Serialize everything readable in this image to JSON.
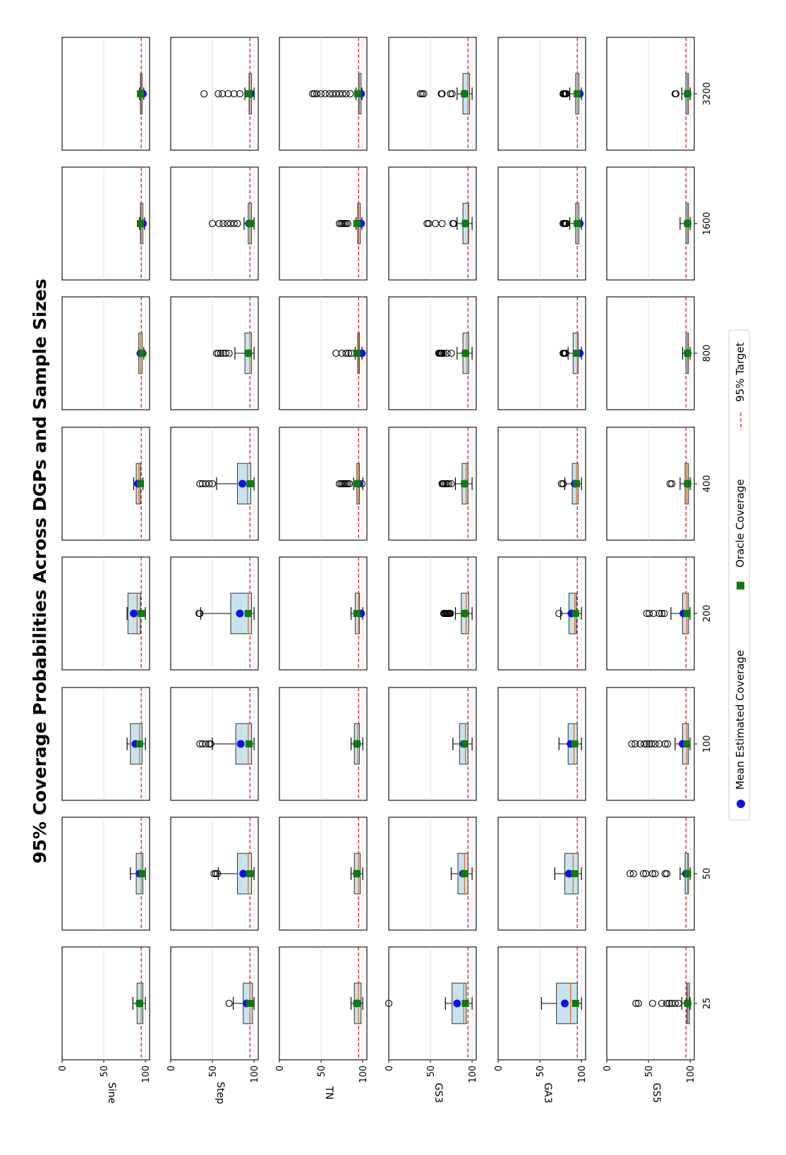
{
  "chart_data": {
    "type": "boxplot-grid",
    "title": "95% Coverage Probabilities Across DGPs and Sample Sizes",
    "rows": [
      "Sine",
      "Step",
      "TN",
      "GS3",
      "GA3",
      "GS5"
    ],
    "columns": [
      "25",
      "50",
      "100",
      "200",
      "400",
      "800",
      "1600",
      "3200"
    ],
    "ylim": [
      0,
      105
    ],
    "yticks": [
      0,
      50,
      100
    ],
    "target": 95,
    "legend": {
      "mean": "Mean Estimated Coverage",
      "oracle": "Oracle Coverage",
      "target": "95% Target"
    },
    "colors": {
      "box_fill": "#c7e3ee",
      "median": "#e66c1e",
      "mean": "#1010ee",
      "oracle": "#0f7a0f",
      "target": "#e41a1c"
    },
    "panels": [
      [
        {
          "q1": 90,
          "median": 95,
          "q3": 97,
          "wlo": 85,
          "whi": 100,
          "mean": 93,
          "oracle": 93,
          "outliers": []
        },
        {
          "q1": 89,
          "median": 95,
          "q3": 97,
          "wlo": 82,
          "whi": 100,
          "mean": 93,
          "oracle": 96,
          "outliers": []
        },
        {
          "q1": 82,
          "median": 93,
          "q3": 96,
          "wlo": 78,
          "whi": 100,
          "mean": 88,
          "oracle": 93,
          "outliers": []
        },
        {
          "q1": 79,
          "median": 90,
          "q3": 94,
          "wlo": 78,
          "whi": 100,
          "mean": 86,
          "oracle": 95,
          "outliers": []
        },
        {
          "q1": 89,
          "median": 92,
          "q3": 94,
          "wlo": 86,
          "whi": 97,
          "mean": 91,
          "oracle": 94,
          "outliers": []
        },
        {
          "q1": 92,
          "median": 94,
          "q3": 96,
          "wlo": 92,
          "whi": 98,
          "mean": 94,
          "oracle": 96,
          "outliers": [
            97
          ]
        },
        {
          "q1": 94,
          "median": 95,
          "q3": 97,
          "wlo": 93,
          "whi": 99,
          "mean": 97,
          "oracle": 94,
          "outliers": []
        },
        {
          "q1": 94,
          "median": 95,
          "q3": 96,
          "wlo": 93,
          "whi": 98,
          "mean": 97,
          "oracle": 94,
          "outliers": []
        }
      ],
      [
        {
          "q1": 87,
          "median": 95,
          "q3": 98,
          "wlo": 75,
          "whi": 100,
          "mean": 91,
          "oracle": 95,
          "outliers": [
            70
          ]
        },
        {
          "q1": 80,
          "median": 93,
          "q3": 97,
          "wlo": 57,
          "whi": 100,
          "mean": 87,
          "oracle": 95,
          "outliers": [
            52,
            54,
            56
          ]
        },
        {
          "q1": 78,
          "median": 93,
          "q3": 97,
          "wlo": 50,
          "whi": 100,
          "mean": 84,
          "oracle": 94,
          "outliers": [
            35,
            38,
            42,
            46,
            48
          ]
        },
        {
          "q1": 72,
          "median": 93,
          "q3": 97,
          "wlo": 36,
          "whi": 100,
          "mean": 83,
          "oracle": 93,
          "outliers": [
            34,
            35
          ]
        },
        {
          "q1": 80,
          "median": 92,
          "q3": 96,
          "wlo": 55,
          "whi": 100,
          "mean": 86,
          "oracle": 95,
          "outliers": [
            35,
            38,
            42,
            46,
            50
          ]
        },
        {
          "q1": 89,
          "median": 95,
          "q3": 97,
          "wlo": 77,
          "whi": 100,
          "mean": 93,
          "oracle": 93,
          "outliers": [
            55,
            57,
            60,
            63,
            66,
            70
          ]
        },
        {
          "q1": 93,
          "median": 95,
          "q3": 97,
          "wlo": 88,
          "whi": 100,
          "mean": 94,
          "oracle": 95,
          "outliers": [
            50,
            58,
            63,
            68,
            72,
            76,
            80
          ]
        },
        {
          "q1": 94,
          "median": 95,
          "q3": 97,
          "wlo": 89,
          "whi": 100,
          "mean": 96,
          "oracle": 94,
          "outliers": [
            40,
            57,
            62,
            69,
            76,
            83
          ]
        }
      ],
      [
        {
          "q1": 90,
          "median": 95,
          "q3": 98,
          "wlo": 86,
          "whi": 100,
          "mean": 93,
          "oracle": 93,
          "outliers": []
        },
        {
          "q1": 90,
          "median": 95,
          "q3": 97,
          "wlo": 86,
          "whi": 100,
          "mean": 93,
          "oracle": 93,
          "outliers": []
        },
        {
          "q1": 90,
          "median": 94,
          "q3": 96,
          "wlo": 86,
          "whi": 100,
          "mean": 93,
          "oracle": 93,
          "outliers": []
        },
        {
          "q1": 91,
          "median": 95,
          "q3": 96,
          "wlo": 86,
          "whi": 100,
          "mean": 98,
          "oracle": 93,
          "outliers": []
        },
        {
          "q1": 93,
          "median": 95,
          "q3": 96,
          "wlo": 89,
          "whi": 100,
          "mean": 95,
          "oracle": 93,
          "outliers": [
            72,
            74,
            76,
            78,
            80,
            82,
            84,
            99
          ]
        },
        {
          "q1": 94,
          "median": 95,
          "q3": 96,
          "wlo": 91,
          "whi": 99,
          "mean": 99,
          "oracle": 93,
          "outliers": [
            68,
            75,
            80,
            83,
            86
          ]
        },
        {
          "q1": 94,
          "median": 95,
          "q3": 97,
          "wlo": 92,
          "whi": 99,
          "mean": 98,
          "oracle": 93,
          "outliers": [
            72,
            74,
            76,
            78,
            80,
            82
          ]
        },
        {
          "q1": 95,
          "median": 96,
          "q3": 98,
          "wlo": 92,
          "whi": 99,
          "mean": 98,
          "oracle": 94,
          "outliers": [
            40,
            42,
            45,
            50,
            55,
            60,
            64,
            68,
            72,
            76,
            80,
            85
          ]
        }
      ],
      [
        {
          "q1": 76,
          "median": 90,
          "q3": 93,
          "wlo": 68,
          "whi": 100,
          "mean": 82,
          "oracle": 92,
          "outliers": [
            0
          ]
        },
        {
          "q1": 83,
          "median": 91,
          "q3": 95,
          "wlo": 75,
          "whi": 100,
          "mean": 89,
          "oracle": 91,
          "outliers": []
        },
        {
          "q1": 85,
          "median": 92,
          "q3": 95,
          "wlo": 77,
          "whi": 100,
          "mean": 90,
          "oracle": 91,
          "outliers": []
        },
        {
          "q1": 87,
          "median": 93,
          "q3": 96,
          "wlo": 80,
          "whi": 100,
          "mean": 91,
          "oracle": 91,
          "outliers": [
            66,
            67,
            68,
            69,
            70,
            71,
            72,
            73,
            74
          ]
        },
        {
          "q1": 88,
          "median": 93,
          "q3": 95,
          "wlo": 80,
          "whi": 100,
          "mean": 91,
          "oracle": 91,
          "outliers": [
            64,
            65,
            66,
            68,
            70,
            72,
            75
          ]
        },
        {
          "q1": 89,
          "median": 94,
          "q3": 96,
          "wlo": 82,
          "whi": 100,
          "mean": 92,
          "oracle": 92,
          "outliers": [
            60,
            61,
            62,
            63,
            64,
            66,
            70,
            75
          ]
        },
        {
          "q1": 89,
          "median": 95,
          "q3": 96,
          "wlo": 82,
          "whi": 100,
          "mean": 92,
          "oracle": 92,
          "outliers": [
            46,
            48,
            56,
            64,
            77,
            78
          ]
        },
        {
          "q1": 89,
          "median": 95,
          "q3": 97,
          "wlo": 82,
          "whi": 100,
          "mean": 91,
          "oracle": 91,
          "outliers": [
            38,
            40,
            42,
            63,
            64,
            74,
            76
          ]
        }
      ],
      [
        {
          "q1": 70,
          "median": 87,
          "q3": 95,
          "wlo": 52,
          "whi": 100,
          "mean": 80,
          "oracle": 93,
          "outliers": []
        },
        {
          "q1": 80,
          "median": 90,
          "q3": 96,
          "wlo": 68,
          "whi": 100,
          "mean": 85,
          "oracle": 92,
          "outliers": []
        },
        {
          "q1": 84,
          "median": 91,
          "q3": 95,
          "wlo": 73,
          "whi": 100,
          "mean": 87,
          "oracle": 92,
          "outliers": []
        },
        {
          "q1": 85,
          "median": 92,
          "q3": 94,
          "wlo": 75,
          "whi": 100,
          "mean": 88,
          "oracle": 93,
          "outliers": [
            73
          ]
        },
        {
          "q1": 89,
          "median": 94,
          "q3": 96,
          "wlo": 80,
          "whi": 100,
          "mean": 92,
          "oracle": 94,
          "outliers": [
            76,
            78
          ]
        },
        {
          "q1": 90,
          "median": 95,
          "q3": 96,
          "wlo": 84,
          "whi": 100,
          "mean": 98,
          "oracle": 94,
          "outliers": [
            78,
            79,
            80,
            81
          ]
        },
        {
          "q1": 93,
          "median": 95,
          "q3": 97,
          "wlo": 86,
          "whi": 100,
          "mean": 98,
          "oracle": 95,
          "outliers": [
            78,
            79,
            80,
            81,
            82
          ]
        },
        {
          "q1": 93,
          "median": 95,
          "q3": 97,
          "wlo": 86,
          "whi": 100,
          "mean": 98,
          "oracle": 95,
          "outliers": [
            78,
            79,
            80,
            81,
            82
          ]
        }
      ],
      [
        {
          "q1": 96,
          "median": 97,
          "q3": 99,
          "wlo": 90,
          "whi": 100,
          "mean": 97,
          "oracle": 97,
          "outliers": [
            35,
            38,
            55,
            66,
            72,
            75,
            78,
            82,
            86
          ]
        },
        {
          "q1": 94,
          "median": 97,
          "q3": 98,
          "wlo": 88,
          "whi": 100,
          "mean": 95,
          "oracle": 97,
          "outliers": [
            28,
            32,
            44,
            47,
            55,
            58,
            70,
            72
          ]
        },
        {
          "q1": 91,
          "median": 96,
          "q3": 98,
          "wlo": 82,
          "whi": 100,
          "mean": 91,
          "oracle": 96,
          "outliers": [
            30,
            34,
            40,
            45,
            48,
            51,
            54,
            58,
            63,
            70,
            73
          ]
        },
        {
          "q1": 91,
          "median": 96,
          "q3": 98,
          "wlo": 77,
          "whi": 100,
          "mean": 92,
          "oracle": 96,
          "outliers": [
            48,
            51,
            56,
            63,
            66,
            69
          ]
        },
        {
          "q1": 94,
          "median": 96,
          "q3": 98,
          "wlo": 88,
          "whi": 100,
          "mean": 97,
          "oracle": 97,
          "outliers": [
            76,
            78
          ]
        },
        {
          "q1": 95,
          "median": 97,
          "q3": 98,
          "wlo": 91,
          "whi": 100,
          "mean": 97,
          "oracle": 97,
          "outliers": []
        },
        {
          "q1": 95,
          "median": 97,
          "q3": 98,
          "wlo": 88,
          "whi": 100,
          "mean": 97,
          "oracle": 97,
          "outliers": []
        },
        {
          "q1": 95,
          "median": 97,
          "q3": 98,
          "wlo": 90,
          "whi": 100,
          "mean": 97,
          "oracle": 97,
          "outliers": [
            82,
            83
          ]
        }
      ]
    ]
  }
}
